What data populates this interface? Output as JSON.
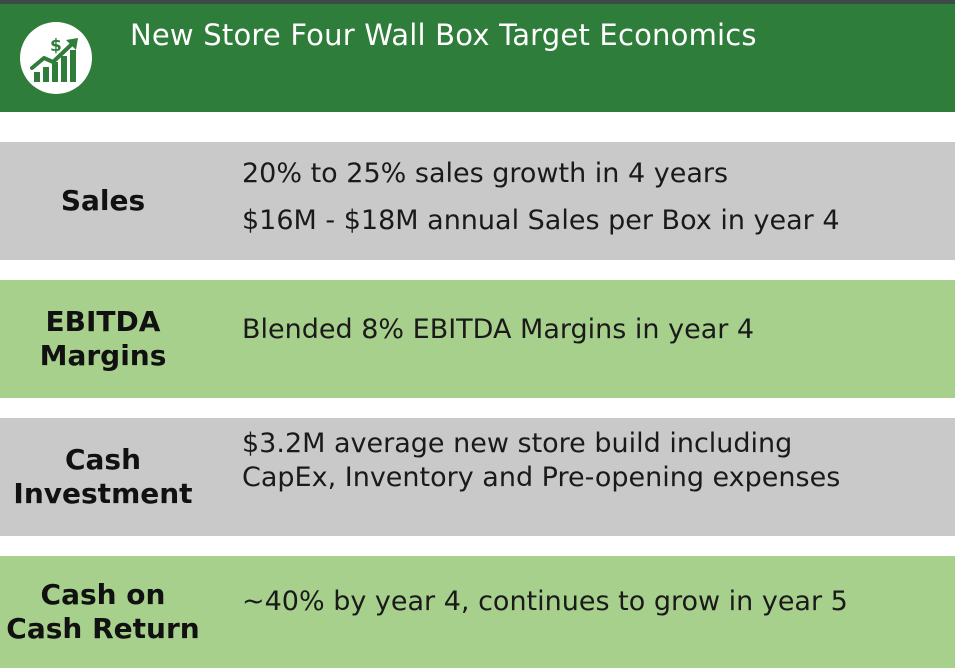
{
  "header": {
    "title": "New Store Four Wall Box Target Economics",
    "logo_icon": "growth-chart-dollar-icon",
    "bar_color": "#2f7d3b"
  },
  "colors": {
    "gray_row": "#c9c9c9",
    "green_row": "#a8d08d",
    "header_green": "#2f7d3b"
  },
  "rows": [
    {
      "label": "Sales",
      "lines": [
        "20% to 25% sales growth in 4 years",
        "$16M - $18M annual Sales per Box in year 4"
      ]
    },
    {
      "label_lines": [
        "EBITDA",
        "Margins"
      ],
      "lines": [
        "Blended 8% EBITDA Margins in year 4"
      ]
    },
    {
      "label_lines": [
        "Cash",
        "Investment"
      ],
      "lines": [
        "$3.2M average new store build including",
        "CapEx, Inventory and Pre-opening expenses"
      ]
    },
    {
      "label_lines": [
        "Cash on",
        "Cash Return"
      ],
      "lines": [
        "~40% by year 4, continues to grow in year 5"
      ]
    }
  ]
}
